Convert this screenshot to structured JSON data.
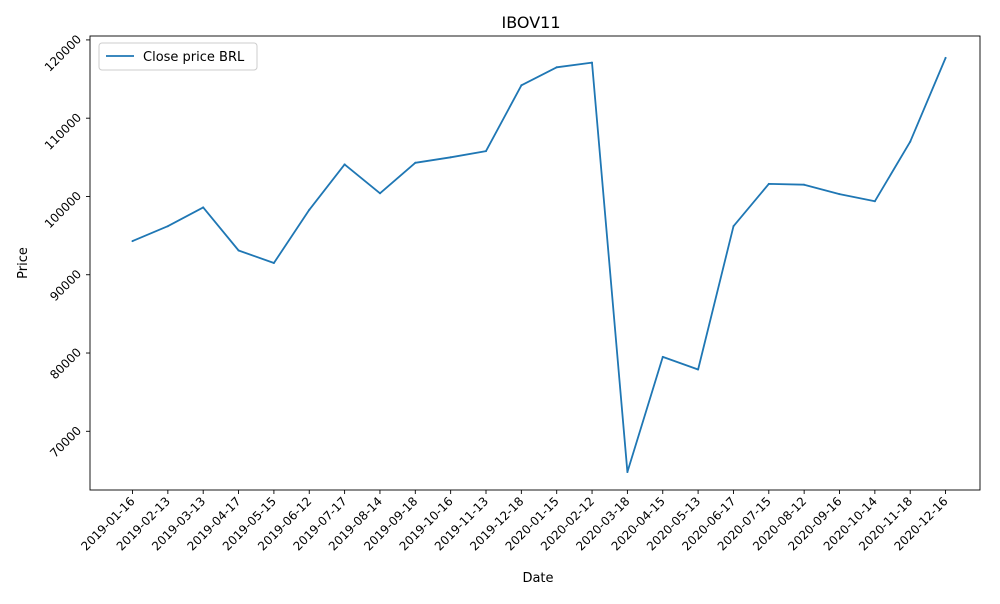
{
  "chart_data": {
    "type": "line",
    "title": "IBOV11",
    "xlabel": "Date",
    "ylabel": "Price",
    "grid": false,
    "legend_position": "top-left",
    "ylim": [
      62500,
      120500
    ],
    "y_ticks": [
      70000,
      80000,
      90000,
      100000,
      110000,
      120000
    ],
    "categories": [
      "2019-01-16",
      "2019-02-13",
      "2019-03-13",
      "2019-04-17",
      "2019-05-15",
      "2019-06-12",
      "2019-07-17",
      "2019-08-14",
      "2019-09-18",
      "2019-10-16",
      "2019-11-13",
      "2019-12-18",
      "2020-01-15",
      "2020-02-12",
      "2020-03-18",
      "2020-04-15",
      "2020-05-13",
      "2020-06-17",
      "2020-07-15",
      "2020-08-12",
      "2020-09-16",
      "2020-10-14",
      "2020-11-18",
      "2020-12-16"
    ],
    "series": [
      {
        "name": "Close price BRL",
        "color": "#1f77b4",
        "values": [
          94300,
          96200,
          98600,
          93100,
          91500,
          98300,
          104100,
          100400,
          104300,
          105000,
          105800,
          114200,
          116500,
          117100,
          64800,
          79500,
          77900,
          96200,
          101600,
          101500,
          100300,
          99400,
          107000,
          117700
        ]
      }
    ]
  }
}
